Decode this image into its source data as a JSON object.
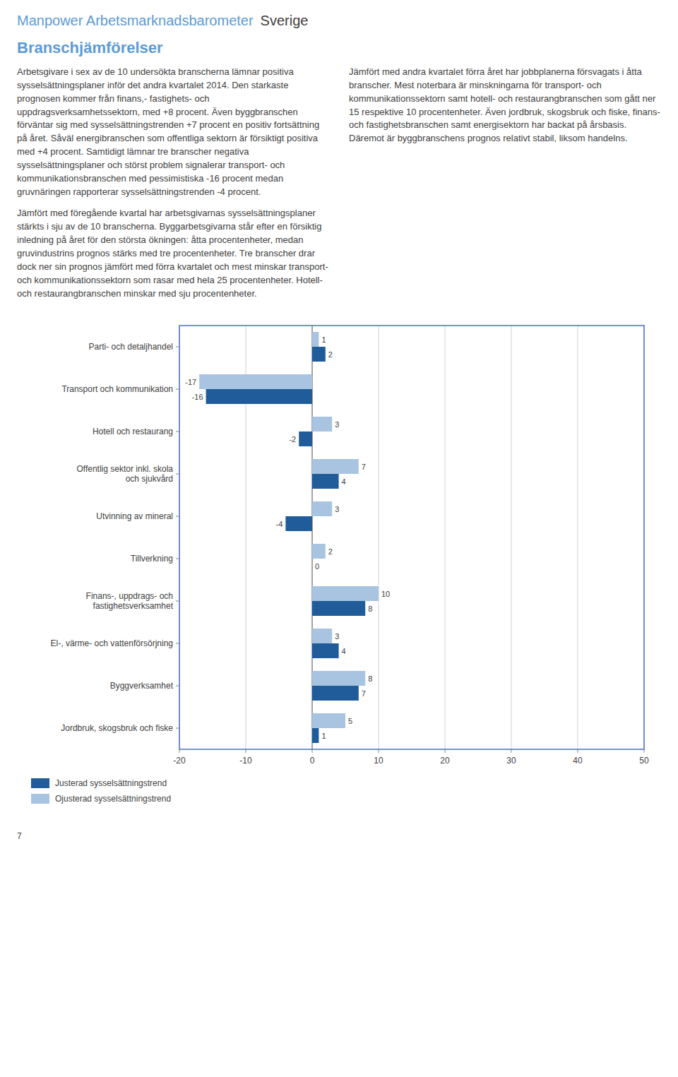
{
  "page_title": [
    "Manpower Arbetsmarknadsbarometer",
    "Sverige"
  ],
  "section_title": "Branschjämförelser",
  "body_left": [
    "Arbetsgivare i sex av de 10 undersökta branscherna lämnar positiva sysselsättningsplaner inför det andra kvartalet 2014. Den starkaste prognosen kommer från finans,- fastighets- och uppdragsverksamhetssektorn, med +8 procent. Även byggbranschen förväntar sig med sysselsättningstrenden +7 procent en positiv fortsättning på året. Såväl energibranschen som offentliga sektorn är försiktigt positiva med +4 procent. Samtidigt lämnar tre branscher negativa sysselsättningsplaner och störst problem signalerar transport- och kommunikationsbranschen med pessimistiska -16 procent medan gruvnäringen rapporterar sysselsättningstrenden -4 procent.",
    "Jämfört med föregående kvartal har arbetsgivarnas sysselsättningsplaner stärkts i sju av de 10 branscherna. Byggarbetsgivarna står efter en försiktig inledning på året för den största ökningen: åtta procentenheter, medan gruvindustrins prognos stärks med tre procentenheter. Tre branscher drar dock ner sin prognos jämfört med förra kvartalet och mest minskar transport- och kommunikationssektorn som rasar med hela 25 procentenheter. Hotell- och restaurangbranschen minskar med sju procentenheter."
  ],
  "body_right": "Jämfört med andra kvartalet förra året har jobbplanerna försvagats i åtta branscher. Mest noterbara är minskningarna för transport- och kommunikationssektorn samt hotell- och restaurangbranschen som gått ner 15 respektive 10 procentenheter. Även jordbruk, skogsbruk och fiske, finans- och fastighetsbranschen samt energisektorn har backat på årsbasis. Däremot är byggbranschens prognos relativt stabil, liksom handelns.",
  "page_number": "7",
  "chart_data": {
    "type": "bar",
    "orientation": "horizontal",
    "categories": [
      "Jordbruk, skogsbruk och fiske",
      "Byggverksamhet",
      "El-, värme- och vattenförsörjning",
      "Finans-, uppdrags- och\nfastighetsverksamhet",
      "Tillverkning",
      "Utvinning av mineral",
      "Offentlig sektor inkl. skola\noch sjukvård",
      "Hotell och restaurang",
      "Transport och kommunikation",
      "Parti- och detaljhandel"
    ],
    "series": [
      {
        "name": "Justerad sysselsättningstrend",
        "color": "#1F5C99",
        "values": [
          1,
          7,
          4,
          8,
          0,
          -4,
          4,
          -2,
          -16,
          2
        ]
      },
      {
        "name": "Ojusterad sysselsättningstrend",
        "color": "#A8C4E0",
        "values": [
          5,
          8,
          3,
          10,
          2,
          3,
          7,
          3,
          -17,
          1
        ]
      }
    ],
    "xlim": [
      -20,
      50
    ],
    "xticks": [
      -20,
      -10,
      0,
      10,
      20,
      30,
      40,
      50
    ],
    "grid": true,
    "legend": "lower left",
    "data_labels": true
  }
}
